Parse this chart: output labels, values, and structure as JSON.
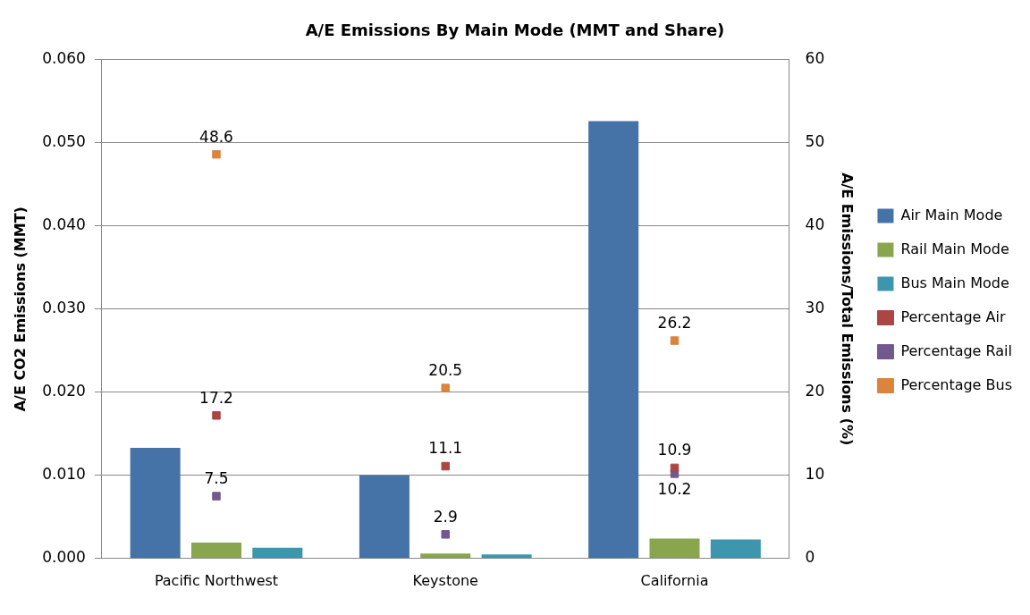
{
  "chart_data": {
    "type": "bar",
    "title": "A/E Emissions By Main Mode (MMT and Share)",
    "ylabel": "A/E CO2 Emissions (MMT)",
    "y2label": "A/E Emissions/Total Emissions (%)",
    "categories": [
      "Pacific Northwest",
      "Keystone",
      "California"
    ],
    "series": [
      {
        "name": "Air Main Mode",
        "color": "#4572a7",
        "values": [
          0.0133,
          0.01,
          0.0526
        ]
      },
      {
        "name": "Rail Main Mode",
        "color": "#89a54e",
        "values": [
          0.0019,
          0.0006,
          0.0024
        ]
      },
      {
        "name": "Bus Main Mode",
        "color": "#3d96ae",
        "values": [
          0.0013,
          0.0005,
          0.0023
        ]
      },
      {
        "name": "Percentage Air",
        "type": "scatter",
        "axis": "y2",
        "color": "#aa4643",
        "values": [
          17.2,
          11.1,
          10.9
        ],
        "value_labels": [
          "17.2",
          "11.1",
          "10.9"
        ]
      },
      {
        "name": "Percentage Rail",
        "type": "scatter",
        "axis": "y2",
        "color": "#71588f",
        "values": [
          7.5,
          2.9,
          10.2
        ],
        "value_labels": [
          "7.5",
          "2.9",
          "10.2"
        ]
      },
      {
        "name": "Percentage Bus",
        "type": "scatter",
        "axis": "y2",
        "color": "#db843d",
        "values": [
          48.6,
          20.5,
          26.2
        ],
        "value_labels": [
          "48.6",
          "20.5",
          "26.2"
        ]
      }
    ],
    "ylim": [
      0,
      0.06
    ],
    "yticks": [
      {
        "value": 0,
        "label": "0.000"
      },
      {
        "value": 0.01,
        "label": "0.010"
      },
      {
        "value": 0.02,
        "label": "0.020"
      },
      {
        "value": 0.03,
        "label": "0.030"
      },
      {
        "value": 0.04,
        "label": "0.040"
      },
      {
        "value": 0.05,
        "label": "0.050"
      },
      {
        "value": 0.06,
        "label": "0.060"
      }
    ],
    "y2lim": [
      0,
      60
    ],
    "y2ticks": [
      0,
      10,
      20,
      30,
      40,
      50,
      60
    ],
    "grid": "y",
    "legend": "right",
    "marker": "square"
  }
}
